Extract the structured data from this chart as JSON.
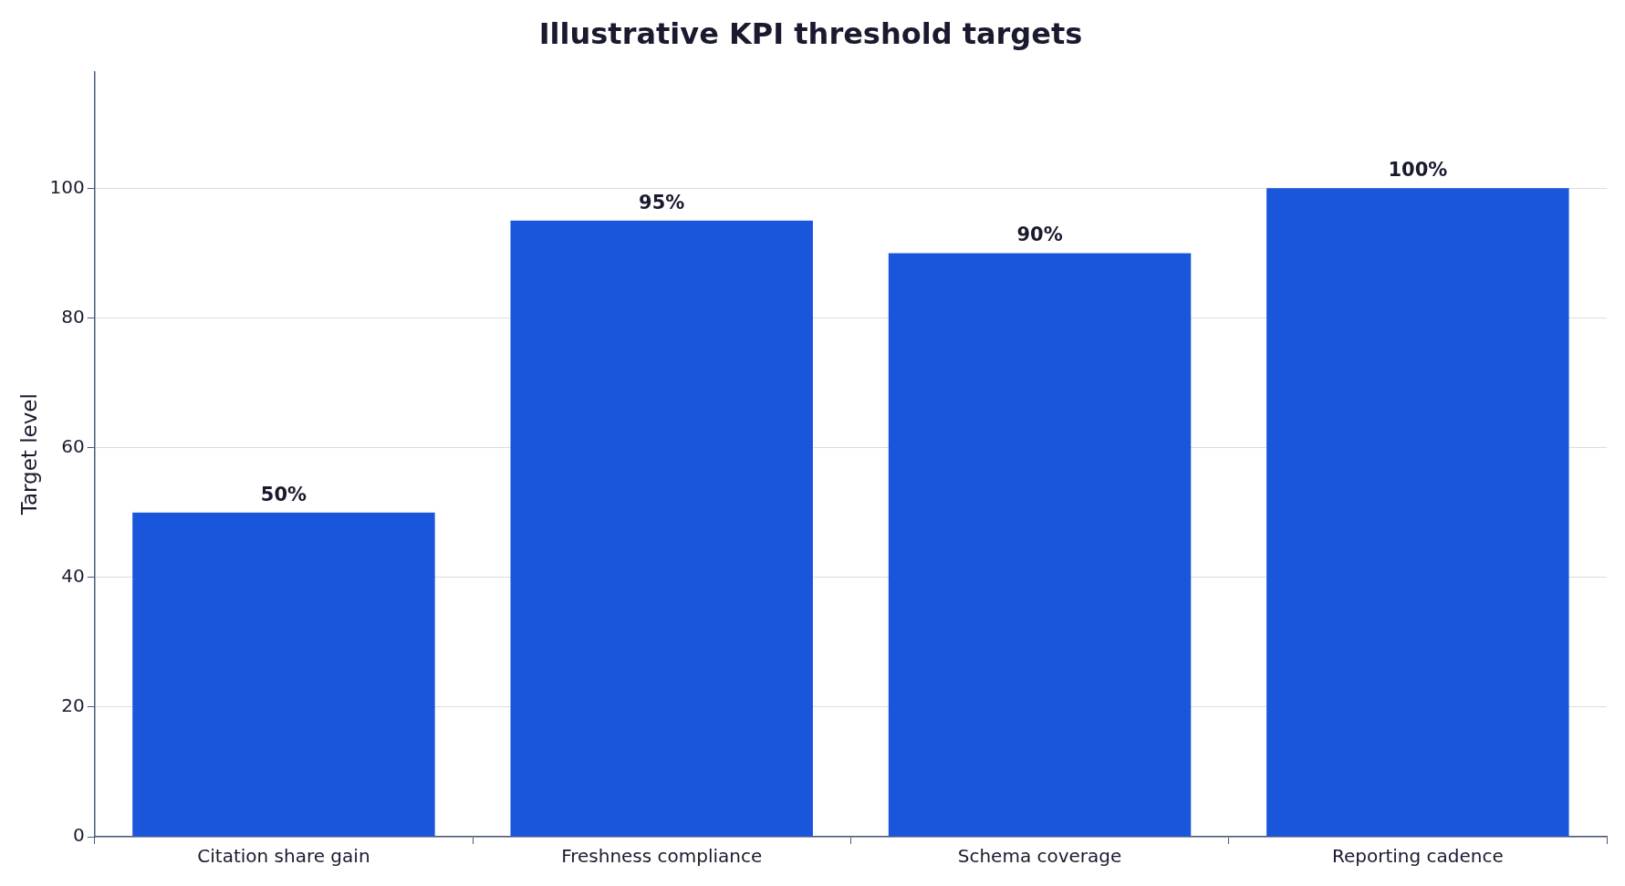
{
  "chart_data": {
    "type": "bar",
    "title": "Illustrative KPI threshold targets",
    "ylabel": "Target level",
    "categories": [
      "Citation share gain",
      "Freshness compliance",
      "Schema coverage",
      "Reporting cadence"
    ],
    "values": [
      50,
      95,
      90,
      100
    ],
    "color": "#1a56db",
    "value_labels": [
      "50%",
      "95%",
      "90%",
      "100%"
    ],
    "ylim": [
      0,
      118
    ],
    "yticks": [
      0,
      20,
      40,
      60,
      80,
      100
    ],
    "grid": "y",
    "legend": false
  }
}
